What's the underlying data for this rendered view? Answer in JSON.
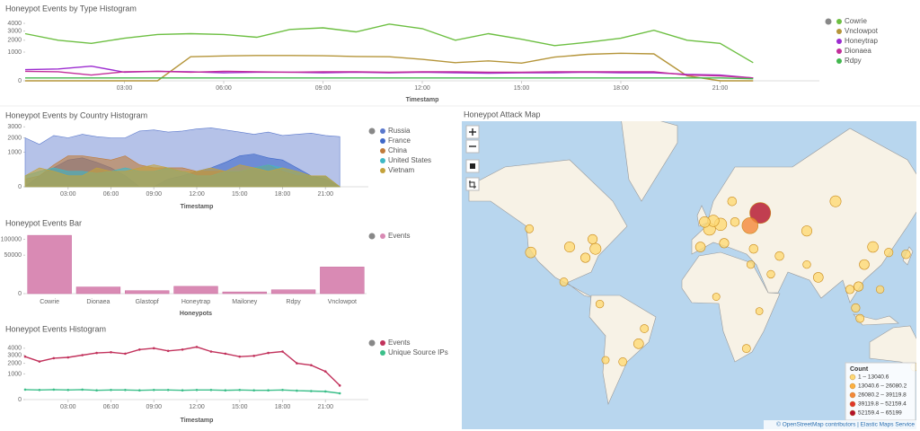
{
  "chart_data": [
    {
      "type": "line",
      "title": "Honeypot Events by Type Histogram",
      "xlabel": "Timestamp",
      "scale": "sqrt",
      "x": [
        0,
        1,
        2,
        3,
        4,
        5,
        6,
        7,
        8,
        9,
        10,
        11,
        12,
        13,
        14,
        15,
        16,
        17,
        18,
        19,
        20,
        21,
        22
      ],
      "xlim": [
        0,
        24
      ],
      "xticks": [
        {
          "value": 3,
          "label": "03:00"
        },
        {
          "value": 6,
          "label": "06:00"
        },
        {
          "value": 9,
          "label": "09:00"
        },
        {
          "value": 12,
          "label": "12:00"
        },
        {
          "value": 15,
          "label": "15:00"
        },
        {
          "value": 18,
          "label": "18:00"
        },
        {
          "value": 21,
          "label": "21:00"
        }
      ],
      "ylim": [
        0,
        5500
      ],
      "yticks": [
        0,
        1000,
        2000,
        3000,
        4000
      ],
      "series": [
        {
          "name": "Cowrie",
          "color": "#6dbf42",
          "values": [
            2700,
            2000,
            1700,
            2200,
            2600,
            2700,
            2600,
            2300,
            3200,
            3400,
            2900,
            3900,
            3300,
            2000,
            2700,
            2100,
            1500,
            1800,
            2200,
            3100,
            2000,
            1700,
            400
          ]
        },
        {
          "name": "Vnclowpot",
          "color": "#b5953a",
          "values": [
            0,
            0,
            0,
            0,
            0,
            700,
            750,
            780,
            780,
            760,
            720,
            700,
            560,
            400,
            480,
            380,
            680,
            850,
            920,
            880,
            30,
            0,
            0
          ]
        },
        {
          "name": "Honeytrap",
          "color": "#9c2bd0",
          "values": [
            150,
            170,
            260,
            90,
            110,
            100,
            80,
            90,
            90,
            80,
            90,
            80,
            90,
            80,
            70,
            80,
            80,
            90,
            80,
            80,
            50,
            40,
            10
          ]
        },
        {
          "name": "Dionaea",
          "color": "#c22e9a",
          "values": [
            110,
            100,
            40,
            100,
            110,
            90,
            110,
            100,
            90,
            100,
            100,
            90,
            100,
            100,
            90,
            90,
            100,
            100,
            100,
            100,
            40,
            30,
            10
          ]
        },
        {
          "name": "Rdpy",
          "color": "#42b74e",
          "values": [
            10,
            10,
            10,
            10,
            10,
            10,
            10,
            10,
            10,
            10,
            10,
            10,
            10,
            10,
            10,
            10,
            10,
            10,
            10,
            10,
            10,
            10,
            5
          ]
        }
      ]
    },
    {
      "type": "area",
      "title": "Honeypot Events by Country Histogram",
      "xlabel": "Timestamp",
      "scale": "sqrt",
      "x": [
        0,
        1,
        2,
        3,
        4,
        5,
        6,
        7,
        8,
        9,
        10,
        11,
        12,
        13,
        14,
        15,
        16,
        17,
        18,
        19,
        20,
        21,
        22
      ],
      "xlim": [
        0,
        24
      ],
      "xticks": [
        {
          "value": 3,
          "label": "03:00"
        },
        {
          "value": 6,
          "label": "06:00"
        },
        {
          "value": 9,
          "label": "09:00"
        },
        {
          "value": 12,
          "label": "12:00"
        },
        {
          "value": 15,
          "label": "15:00"
        },
        {
          "value": 18,
          "label": "18:00"
        },
        {
          "value": 21,
          "label": "21:00"
        }
      ],
      "ylim": [
        0,
        3400
      ],
      "yticks": [
        0,
        1000,
        2000,
        3000
      ],
      "series": [
        {
          "name": "Russia",
          "color": "#5a78cc",
          "values": [
            2000,
            1500,
            2200,
            2000,
            2300,
            2100,
            2000,
            2000,
            2600,
            2700,
            2500,
            2600,
            2800,
            2900,
            2700,
            2500,
            2300,
            2500,
            2200,
            2300,
            2400,
            2200,
            2100
          ]
        },
        {
          "name": "France",
          "color": "#3f68c8",
          "values": [
            0,
            100,
            300,
            600,
            700,
            500,
            300,
            100,
            0,
            0,
            50,
            100,
            200,
            300,
            500,
            800,
            900,
            700,
            600,
            300,
            100,
            50,
            0
          ]
        },
        {
          "name": "China",
          "color": "#c07b3a",
          "values": [
            50,
            100,
            400,
            800,
            800,
            700,
            600,
            800,
            400,
            300,
            300,
            300,
            200,
            200,
            200,
            200,
            300,
            400,
            200,
            100,
            100,
            100,
            0
          ]
        },
        {
          "name": "United States",
          "color": "#3fb8c5",
          "values": [
            100,
            200,
            300,
            200,
            200,
            150,
            200,
            300,
            200,
            200,
            300,
            200,
            100,
            100,
            200,
            200,
            300,
            400,
            300,
            200,
            100,
            100,
            0
          ]
        },
        {
          "name": "Vietnam",
          "color": "#c4a23b",
          "values": [
            100,
            300,
            200,
            100,
            100,
            300,
            200,
            200,
            300,
            400,
            300,
            200,
            200,
            300,
            200,
            400,
            300,
            200,
            300,
            200,
            100,
            100,
            0
          ]
        }
      ]
    },
    {
      "type": "bar",
      "title": "Honeypot Events Bar",
      "xlabel": "Honeypots",
      "scale": "sqrt",
      "categories": [
        "Cowrie",
        "Dionaea",
        "Glastopf",
        "Honeytrap",
        "Mailoney",
        "Rdpy",
        "Vnclowpot"
      ],
      "ylim": [
        0,
        130000
      ],
      "yticks": [
        0,
        50000,
        100000
      ],
      "series": [
        {
          "name": "Events",
          "color": "#d98ab4",
          "values": [
            115000,
            1500,
            300,
            1800,
            100,
            500,
            24000
          ]
        }
      ]
    },
    {
      "type": "line",
      "title": "Honeypot Events Histogram",
      "xlabel": "Timestamp",
      "scale": "sqrt",
      "x": [
        0,
        1,
        2,
        3,
        4,
        5,
        6,
        7,
        8,
        9,
        10,
        11,
        12,
        13,
        14,
        15,
        16,
        17,
        18,
        19,
        20,
        21,
        22
      ],
      "xlim": [
        0,
        24
      ],
      "xticks": [
        {
          "value": 3,
          "label": "03:00"
        },
        {
          "value": 6,
          "label": "06:00"
        },
        {
          "value": 9,
          "label": "09:00"
        },
        {
          "value": 12,
          "label": "12:00"
        },
        {
          "value": 15,
          "label": "15:00"
        },
        {
          "value": 18,
          "label": "18:00"
        },
        {
          "value": 21,
          "label": "21:00"
        }
      ],
      "ylim": [
        0,
        6000
      ],
      "yticks": [
        0,
        1000,
        2000,
        3000,
        4000
      ],
      "series": [
        {
          "name": "Events",
          "color": "#c2325c",
          "values": [
            2800,
            2200,
            2600,
            2700,
            3000,
            3300,
            3400,
            3200,
            3800,
            4000,
            3600,
            3800,
            4200,
            3500,
            3200,
            2800,
            2900,
            3300,
            3500,
            2000,
            1800,
            1200,
            300
          ]
        },
        {
          "name": "Unique Source IPs",
          "color": "#3cbf8a",
          "values": [
            150,
            140,
            150,
            140,
            150,
            130,
            140,
            140,
            130,
            140,
            140,
            130,
            140,
            140,
            130,
            140,
            130,
            130,
            140,
            120,
            110,
            100,
            60
          ]
        }
      ]
    }
  ],
  "map": {
    "title": "Honeypot Attack Map",
    "legend_title": "Count",
    "attribution": "© OpenStreetMap contributors | Elastic Maps Service",
    "legend": [
      {
        "label": "1 – 13040.6",
        "range": [
          1,
          13040.6
        ],
        "color": "#fed976"
      },
      {
        "label": "13040.6 – 26080.2",
        "range": [
          13040.6,
          26080.2
        ],
        "color": "#fdb042"
      },
      {
        "label": "26080.2 – 39119.8",
        "range": [
          26080.2,
          39119.8
        ],
        "color": "#f4873a"
      },
      {
        "label": "39119.8 – 52159.4",
        "range": [
          39119.8,
          52159.4
        ],
        "color": "#e0352b"
      },
      {
        "label": "52159.4 – 65199",
        "range": [
          52159.4,
          65199
        ],
        "color": "#b3102a"
      }
    ],
    "points": [
      {
        "lon": 37.6,
        "lat": 55.7,
        "count": 60000
      },
      {
        "lon": 30.5,
        "lat": 50.4,
        "count": 28000
      },
      {
        "lon": 10,
        "lat": 51,
        "count": 12000
      },
      {
        "lon": 2.3,
        "lat": 48.8,
        "count": 11000
      },
      {
        "lon": 5,
        "lat": 52.5,
        "count": 9000
      },
      {
        "lon": -1,
        "lat": 52,
        "count": 7000
      },
      {
        "lon": -4,
        "lat": 40,
        "count": 5000
      },
      {
        "lon": 12.5,
        "lat": 42,
        "count": 4000
      },
      {
        "lon": 20,
        "lat": 52,
        "count": 3000
      },
      {
        "lon": 18,
        "lat": 60,
        "count": 3000
      },
      {
        "lon": 70,
        "lat": 48,
        "count": 6000
      },
      {
        "lon": 90,
        "lat": 60,
        "count": 8000
      },
      {
        "lon": 116,
        "lat": 40,
        "count": 7000
      },
      {
        "lon": 110,
        "lat": 30,
        "count": 5000
      },
      {
        "lon": 78,
        "lat": 22,
        "count": 5000
      },
      {
        "lon": 106,
        "lat": 16,
        "count": 4000
      },
      {
        "lon": 139,
        "lat": 36,
        "count": 3000
      },
      {
        "lon": 127,
        "lat": 37,
        "count": 2500
      },
      {
        "lon": 107,
        "lat": -6,
        "count": 2000
      },
      {
        "lon": 145,
        "lat": -37,
        "count": 1500
      },
      {
        "lon": -77,
        "lat": 39,
        "count": 8000
      },
      {
        "lon": -122,
        "lat": 37,
        "count": 7000
      },
      {
        "lon": -95,
        "lat": 40,
        "count": 6000
      },
      {
        "lon": -84,
        "lat": 34,
        "count": 4000
      },
      {
        "lon": -79,
        "lat": 44,
        "count": 4000
      },
      {
        "lon": -123,
        "lat": 49,
        "count": 2000
      },
      {
        "lon": -99,
        "lat": 19,
        "count": 2000
      },
      {
        "lon": -47,
        "lat": -23,
        "count": 5000
      },
      {
        "lon": -43,
        "lat": -13,
        "count": 2000
      },
      {
        "lon": -58,
        "lat": -34,
        "count": 2000
      },
      {
        "lon": -74,
        "lat": 4,
        "count": 1500
      },
      {
        "lon": -70,
        "lat": -33,
        "count": 1000
      },
      {
        "lon": 28,
        "lat": -26,
        "count": 2000
      },
      {
        "lon": 7,
        "lat": 9,
        "count": 1000
      },
      {
        "lon": 31,
        "lat": 30,
        "count": 1500
      },
      {
        "lon": 37,
        "lat": -1,
        "count": 800
      },
      {
        "lon": 51,
        "lat": 35,
        "count": 3000
      },
      {
        "lon": 33,
        "lat": 39,
        "count": 3000
      },
      {
        "lon": 45,
        "lat": 24,
        "count": 1500
      },
      {
        "lon": 70,
        "lat": 30,
        "count": 1500
      },
      {
        "lon": 100,
        "lat": 14,
        "count": 2500
      },
      {
        "lon": 104,
        "lat": 1.3,
        "count": 2500
      },
      {
        "lon": 121,
        "lat": 14,
        "count": 1500
      }
    ]
  }
}
